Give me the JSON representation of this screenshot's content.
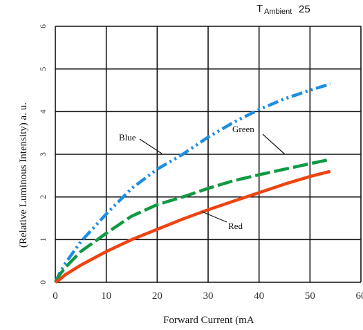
{
  "chart_data": {
    "type": "line",
    "header": {
      "t": "T",
      "sub": "Ambient",
      "value": "25"
    },
    "xlabel": "Forward Current  (mA",
    "ylabel": "(Relative Luminous Intensity)   a. u.",
    "xlim": [
      0,
      60
    ],
    "ylim": [
      0,
      6
    ],
    "xticks": [
      "0",
      "10",
      "20",
      "30",
      "40",
      "50",
      "60"
    ],
    "yticks": [
      "0",
      "1",
      "2",
      "3",
      "4",
      "5",
      "6"
    ],
    "grid": true,
    "series": [
      {
        "name": "Blue",
        "color": "#1e8fe0",
        "dash": "dashdotdot",
        "x": [
          0,
          1,
          2,
          5,
          10,
          15,
          20,
          25,
          30,
          35,
          40,
          45,
          50,
          54
        ],
        "y": [
          0,
          0.25,
          0.45,
          0.95,
          1.6,
          2.2,
          2.65,
          3.0,
          3.4,
          3.75,
          4.05,
          4.3,
          4.5,
          4.65
        ]
      },
      {
        "name": "Green",
        "color": "#119944",
        "dash": "dashed",
        "x": [
          0,
          1,
          2,
          5,
          10,
          15,
          20,
          25,
          30,
          35,
          40,
          45,
          50,
          54
        ],
        "y": [
          0,
          0.2,
          0.35,
          0.72,
          1.15,
          1.55,
          1.82,
          2.0,
          2.2,
          2.38,
          2.52,
          2.65,
          2.78,
          2.88
        ]
      },
      {
        "name": "Red",
        "color": "#ee4411",
        "dash": "solid",
        "x": [
          0,
          1,
          2,
          5,
          10,
          15,
          20,
          25,
          30,
          35,
          40,
          45,
          50,
          54
        ],
        "y": [
          0,
          0.08,
          0.18,
          0.4,
          0.72,
          1.0,
          1.24,
          1.48,
          1.7,
          1.9,
          2.1,
          2.3,
          2.48,
          2.6
        ]
      }
    ],
    "annotations": [
      {
        "text": "Blue",
        "series": "Blue"
      },
      {
        "text": "Green",
        "series": "Green"
      },
      {
        "text": "Red",
        "series": "Red"
      }
    ]
  }
}
